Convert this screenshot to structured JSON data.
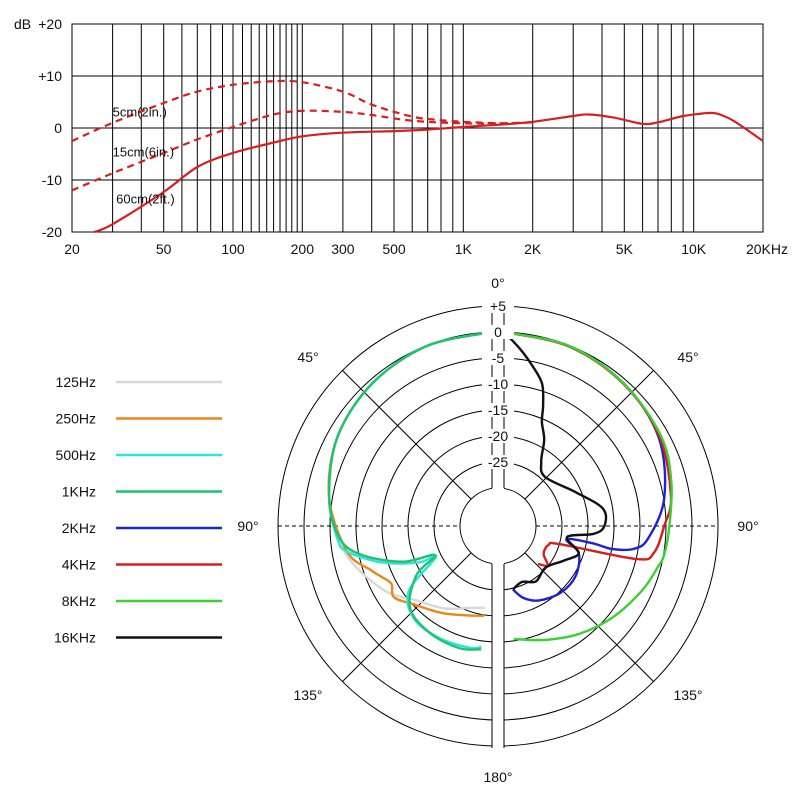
{
  "colors": {
    "response": "#d81e1e",
    "grid": "#000000",
    "background": "#ffffff"
  },
  "chart_data": [
    {
      "type": "line",
      "title": "",
      "xlabel": "",
      "ylabel": "dB",
      "x_scale": "log",
      "xlim": [
        20,
        20000
      ],
      "ylim": [
        -20,
        20
      ],
      "x_tick_labels": [
        {
          "value": 20,
          "label": "20"
        },
        {
          "value": 50,
          "label": "50"
        },
        {
          "value": 100,
          "label": "100"
        },
        {
          "value": 200,
          "label": "200"
        },
        {
          "value": 300,
          "label": "300"
        },
        {
          "value": 500,
          "label": "500"
        },
        {
          "value": 1000,
          "label": "1K"
        },
        {
          "value": 2000,
          "label": "2K"
        },
        {
          "value": 5000,
          "label": "5K"
        },
        {
          "value": 10000,
          "label": "10K"
        },
        {
          "value": 20000,
          "label": "20KHz"
        }
      ],
      "y_tick_labels": [
        {
          "value": 20,
          "label": "+20"
        },
        {
          "value": 10,
          "label": "+10"
        },
        {
          "value": 0,
          "label": "0"
        },
        {
          "value": -10,
          "label": "-10"
        },
        {
          "value": -20,
          "label": "-20"
        }
      ],
      "grid": true,
      "series": [
        {
          "name": "5cm(2in.)",
          "style": "dashed",
          "color": "#d81e1e",
          "points": [
            [
              20,
              -2.5
            ],
            [
              30,
              1
            ],
            [
              50,
              4.8
            ],
            [
              70,
              7
            ],
            [
              100,
              8.3
            ],
            [
              150,
              9
            ],
            [
              200,
              8.8
            ],
            [
              300,
              7
            ],
            [
              400,
              4.5
            ],
            [
              600,
              2.2
            ],
            [
              800,
              1.5
            ],
            [
              1000,
              1.2
            ],
            [
              1500,
              0.9
            ],
            [
              2000,
              1.1
            ]
          ]
        },
        {
          "name": "15cm(6in.)",
          "style": "dashed",
          "color": "#d81e1e",
          "points": [
            [
              20,
              -12
            ],
            [
              30,
              -8.7
            ],
            [
              50,
              -4.8
            ],
            [
              70,
              -2.2
            ],
            [
              100,
              0.2
            ],
            [
              150,
              2.6
            ],
            [
              200,
              3.3
            ],
            [
              300,
              3.1
            ],
            [
              400,
              2.5
            ],
            [
              600,
              1.4
            ],
            [
              1000,
              0.9
            ],
            [
              1500,
              0.9
            ],
            [
              2000,
              1.1
            ]
          ]
        },
        {
          "name": "60cm(2ft.)",
          "style": "solid",
          "color": "#d81e1e",
          "points": [
            [
              25,
              -20
            ],
            [
              30,
              -18.5
            ],
            [
              50,
              -12.3
            ],
            [
              70,
              -7.5
            ],
            [
              100,
              -4.8
            ],
            [
              150,
              -2.8
            ],
            [
              200,
              -1.6
            ],
            [
              300,
              -0.9
            ],
            [
              500,
              -0.6
            ],
            [
              700,
              -0.3
            ],
            [
              1000,
              0.2
            ],
            [
              1500,
              0.7
            ],
            [
              2000,
              1.2
            ],
            [
              3000,
              2.3
            ],
            [
              3500,
              2.6
            ],
            [
              4500,
              2
            ],
            [
              6000,
              0.8
            ],
            [
              7000,
              1.1
            ],
            [
              9000,
              2.3
            ],
            [
              11000,
              2.8
            ],
            [
              12000,
              2.9
            ],
            [
              13000,
              2.6
            ],
            [
              15000,
              1.3
            ],
            [
              20000,
              -2.5
            ]
          ]
        }
      ]
    },
    {
      "type": "polar",
      "title": "",
      "r_unit": "dB",
      "rlim": [
        -30,
        5
      ],
      "ring_tick_labels": [
        {
          "value": 5,
          "label": "+5"
        },
        {
          "value": 0,
          "label": "0"
        },
        {
          "value": -5,
          "label": "-5"
        },
        {
          "value": -10,
          "label": "-10"
        },
        {
          "value": -15,
          "label": "-15"
        },
        {
          "value": -20,
          "label": "-20"
        },
        {
          "value": -25,
          "label": "-25"
        }
      ],
      "angle_labels": [
        {
          "deg": 0,
          "label": "0°"
        },
        {
          "deg": 45,
          "label": "45°"
        },
        {
          "deg": 90,
          "label": "90°"
        },
        {
          "deg": 135,
          "label": "135°"
        },
        {
          "deg": 180,
          "label": "180°"
        },
        {
          "deg": -45,
          "label": "45°"
        },
        {
          "deg": -90,
          "label": "90°"
        },
        {
          "deg": -135,
          "label": "135°"
        }
      ],
      "series": [
        {
          "name": "125Hz",
          "color": "#d8d8d8",
          "side": "left",
          "points": [
            [
              0,
              0
            ],
            [
              20,
              -0.5
            ],
            [
              40,
              -1.5
            ],
            [
              60,
              -3
            ],
            [
              80,
              -5.5
            ],
            [
              100,
              -8.5
            ],
            [
              120,
              -13
            ],
            [
              135,
              -17
            ],
            [
              150,
              -19
            ],
            [
              165,
              -21
            ],
            [
              175,
              -21.5
            ]
          ]
        },
        {
          "name": "250Hz",
          "color": "#e8891c",
          "side": "left",
          "points": [
            [
              0,
              0
            ],
            [
              20,
              -0.5
            ],
            [
              40,
              -1.5
            ],
            [
              60,
              -3
            ],
            [
              80,
              -5.5
            ],
            [
              100,
              -9
            ],
            [
              110,
              -12.5
            ],
            [
              115,
              -14
            ],
            [
              120,
              -15
            ],
            [
              126,
              -14
            ],
            [
              135,
              -16
            ],
            [
              150,
              -18
            ],
            [
              165,
              -19.5
            ],
            [
              175,
              -20
            ]
          ]
        },
        {
          "name": "500Hz",
          "color": "#2ee2e2",
          "side": "left",
          "points": [
            [
              0,
              0
            ],
            [
              20,
              -0.5
            ],
            [
              40,
              -1.5
            ],
            [
              60,
              -3
            ],
            [
              80,
              -5.5
            ],
            [
              95,
              -7.5
            ],
            [
              100,
              -9
            ],
            [
              107,
              -14
            ],
            [
              112,
              -18
            ],
            [
              117,
              -22
            ],
            [
              119,
              -25
            ],
            [
              128,
              -17
            ],
            [
              140,
              -14
            ],
            [
              155,
              -13.5
            ],
            [
              170,
              -13.5
            ],
            [
              175,
              -14
            ]
          ]
        },
        {
          "name": "1KHz",
          "color": "#1fc26e",
          "side": "left",
          "points": [
            [
              0,
              0
            ],
            [
              20,
              -0.5
            ],
            [
              40,
              -1.5
            ],
            [
              60,
              -3
            ],
            [
              80,
              -5.5
            ],
            [
              95,
              -8
            ],
            [
              103,
              -12
            ],
            [
              112,
              -19
            ],
            [
              117,
              -25
            ],
            [
              123,
              -20
            ],
            [
              135,
              -15
            ],
            [
              150,
              -13.5
            ],
            [
              165,
              -13
            ],
            [
              175,
              -13.5
            ]
          ]
        },
        {
          "name": "2KHz",
          "color": "#1f22d4",
          "side": "right",
          "points": [
            [
              0,
              0
            ],
            [
              20,
              -0.5
            ],
            [
              40,
              -1.5
            ],
            [
              60,
              -3
            ],
            [
              80,
              -6
            ],
            [
              95,
              -9.5
            ],
            [
              100,
              -12
            ],
            [
              102,
              -16
            ],
            [
              101,
              -20
            ],
            [
              102,
              -25
            ],
            [
              110,
              -22
            ],
            [
              125,
              -20.5
            ],
            [
              140,
              -20.5
            ],
            [
              155,
              -21.5
            ],
            [
              165,
              -23
            ],
            [
              172,
              -25
            ]
          ]
        },
        {
          "name": "4KHz",
          "color": "#d81e1e",
          "side": "right",
          "points": [
            [
              0,
              0
            ],
            [
              20,
              -0.6
            ],
            [
              40,
              -1.6
            ],
            [
              60,
              -2.8
            ],
            [
              80,
              -4.7
            ],
            [
              90,
              -6.5
            ],
            [
              100,
              -8
            ],
            [
              104,
              -11
            ],
            [
              108,
              -26
            ],
            [
              113,
              -28
            ],
            [
              125,
              -28
            ],
            [
              132,
              -26
            ],
            [
              138,
              -27.5
            ]
          ]
        },
        {
          "name": "8KHz",
          "color": "#39d133",
          "side": "right",
          "points": [
            [
              0,
              0
            ],
            [
              20,
              -0.5
            ],
            [
              40,
              -1.5
            ],
            [
              60,
              -2.5
            ],
            [
              75,
              -4
            ],
            [
              90,
              -5.5
            ],
            [
              100,
              -6
            ],
            [
              105,
              -6.7
            ],
            [
              115,
              -8
            ],
            [
              130,
              -10
            ],
            [
              145,
              -12
            ],
            [
              160,
              -14
            ],
            [
              175,
              -15.5
            ]
          ]
        },
        {
          "name": "16KHz",
          "color": "#111111",
          "side": "right",
          "points": [
            [
              0,
              0
            ],
            [
              5,
              -3
            ],
            [
              10,
              -6
            ],
            [
              15,
              -9
            ],
            [
              18,
              -13
            ],
            [
              20,
              -16
            ],
            [
              25,
              -19
            ],
            [
              30,
              -23
            ],
            [
              40,
              -25
            ],
            [
              65,
              -22
            ],
            [
              80,
              -18
            ],
            [
              90,
              -18
            ],
            [
              95,
              -20
            ],
            [
              100,
              -25
            ],
            [
              110,
              -22
            ],
            [
              120,
              -24
            ],
            [
              135,
              -26
            ],
            [
              150,
              -25
            ],
            [
              162,
              -26
            ],
            [
              172,
              -25
            ]
          ]
        }
      ]
    }
  ]
}
